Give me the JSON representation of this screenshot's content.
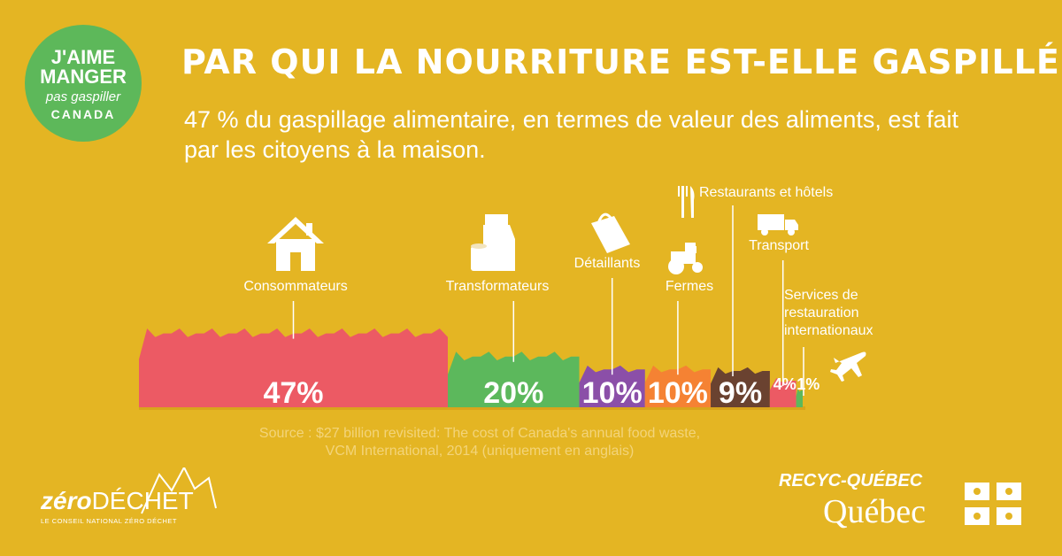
{
  "badge": {
    "line1": "J'AIME",
    "line2": "MANGER",
    "line3": "pas gaspiller",
    "line4": "CANADA"
  },
  "header": {
    "title": "PAR QUI LA NOURRITURE EST-ELLE GASPILLÉE?",
    "subtitle": "47 % du gaspillage alimentaire, en termes de valeur des aliments, est fait par les citoyens à la maison."
  },
  "chart_data": {
    "type": "bar",
    "categories": [
      "Consommateurs",
      "Transformateurs",
      "Détaillants",
      "Fermes",
      "Restaurants et hôtels",
      "Transport",
      "Services de restauration internationaux"
    ],
    "values": [
      47,
      20,
      10,
      10,
      9,
      4,
      1
    ],
    "labels": [
      "47%",
      "20%",
      "10%",
      "10%",
      "9%",
      "4%",
      "1%"
    ],
    "colors": [
      "#ec5a64",
      "#5cb85c",
      "#8b4fa8",
      "#f58233",
      "#6a4230",
      "#ec5a64",
      "#5cb85c"
    ]
  },
  "source": {
    "line1": "Source : $27 billion revisited: The cost of Canada's annual food waste,",
    "line2": "VCM International, 2014 (uniquement en anglais)"
  },
  "footer": {
    "zero_bold": "zéro",
    "zero_thin": "DÉCHET",
    "zero_tag": "LE CONSEIL NATIONAL ZÉRO DÉCHET",
    "recyc": "RECYC-QUÉBEC",
    "quebec": "Québec"
  }
}
